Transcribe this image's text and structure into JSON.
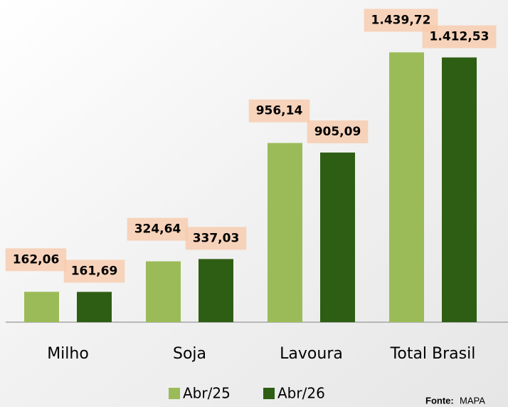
{
  "chart_data": {
    "type": "bar",
    "categories": [
      "Milho",
      "Soja",
      "Lavoura",
      "Total Brasil"
    ],
    "series": [
      {
        "name": "Abr/25",
        "color": "#9bbb59",
        "values": [
          162.06,
          324.64,
          956.14,
          1439.72
        ],
        "value_labels": [
          "162,06",
          "324,64",
          "956,14",
          "1.439,72"
        ]
      },
      {
        "name": "Abr/26",
        "color": "#2e5e14",
        "values": [
          161.69,
          337.03,
          905.09,
          1412.53
        ],
        "value_labels": [
          "161,69",
          "337,03",
          "905,09",
          "1.412,53"
        ]
      }
    ],
    "ylim": [
      0,
      1700
    ],
    "label_background": "#f8cbad",
    "source": [
      "Fonte:",
      "MAPA"
    ]
  }
}
